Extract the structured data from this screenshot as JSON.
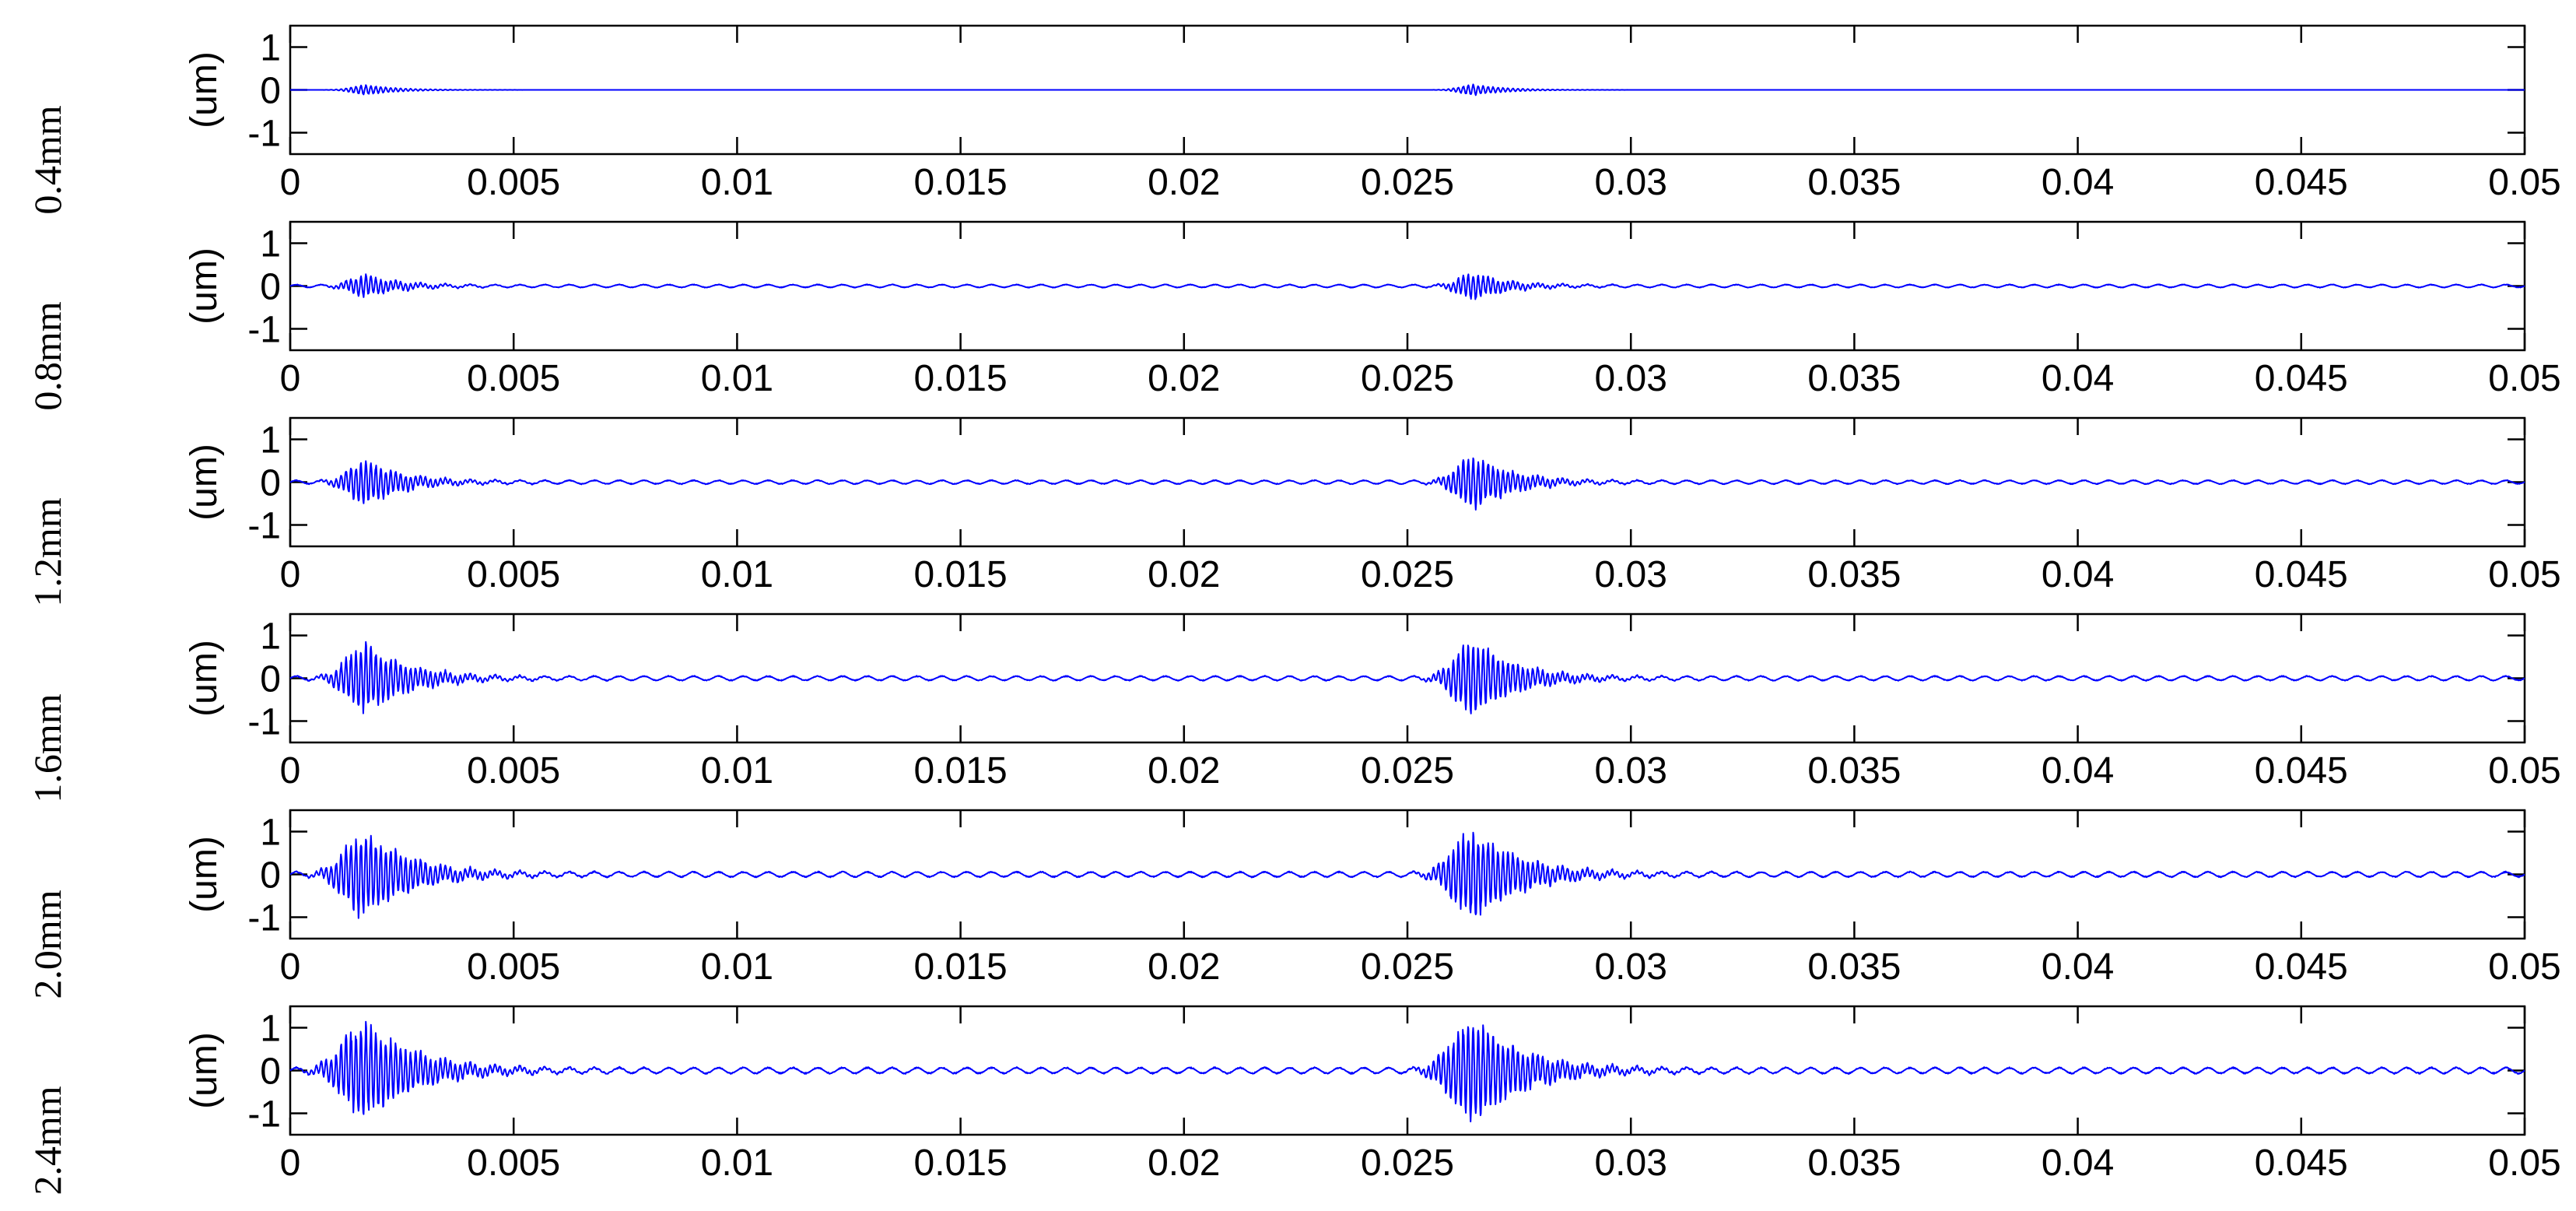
{
  "side_labels": [
    "0.4mm",
    "0.8mm",
    "1.2mm",
    "1.6mm",
    "2.0mm",
    "2.4mm"
  ],
  "colors": {
    "signal": "#0000ff",
    "axes": "#000000"
  },
  "chart_data": [
    {
      "type": "line",
      "series": [
        {
          "pulses": [
            {
              "center": 0.0017,
              "amplitude": 0.12,
              "width": 0.0008
            },
            {
              "center": 0.0265,
              "amplitude": 0.13,
              "width": 0.0008
            }
          ],
          "ripple": 0.0
        }
      ],
      "xlim": [
        0,
        0.05
      ],
      "ylim": [
        -1.5,
        1.5
      ],
      "xticks": [
        "0",
        "0.005",
        "0.01",
        "0.015",
        "0.02",
        "0.025",
        "0.03",
        "0.035",
        "0.04",
        "0.045",
        "0.05"
      ],
      "yticks": [
        "1",
        "0",
        "-1"
      ],
      "ylabel": "(um)"
    },
    {
      "type": "line",
      "series": [
        {
          "pulses": [
            {
              "center": 0.0017,
              "amplitude": 0.27,
              "width": 0.0009
            },
            {
              "center": 0.0265,
              "amplitude": 0.32,
              "width": 0.0009
            }
          ],
          "ripple": 0.04
        }
      ],
      "xlim": [
        0,
        0.05
      ],
      "ylim": [
        -1.5,
        1.5
      ],
      "xticks": [
        "0",
        "0.005",
        "0.01",
        "0.015",
        "0.02",
        "0.025",
        "0.03",
        "0.035",
        "0.04",
        "0.045",
        "0.05"
      ],
      "yticks": [
        "1",
        "0",
        "-1"
      ],
      "ylabel": "(um)"
    },
    {
      "type": "line",
      "series": [
        {
          "pulses": [
            {
              "center": 0.0017,
              "amplitude": 0.55,
              "width": 0.001
            },
            {
              "center": 0.0265,
              "amplitude": 0.65,
              "width": 0.001
            }
          ],
          "ripple": 0.05
        }
      ],
      "xlim": [
        0,
        0.05
      ],
      "ylim": [
        -1.5,
        1.5
      ],
      "xticks": [
        "0",
        "0.005",
        "0.01",
        "0.015",
        "0.02",
        "0.025",
        "0.03",
        "0.035",
        "0.04",
        "0.045",
        "0.05"
      ],
      "yticks": [
        "1",
        "0",
        "-1"
      ],
      "ylabel": "(um)"
    },
    {
      "type": "line",
      "series": [
        {
          "pulses": [
            {
              "center": 0.0017,
              "amplitude": 0.85,
              "width": 0.0011
            },
            {
              "center": 0.0265,
              "amplitude": 0.9,
              "width": 0.0011
            }
          ],
          "ripple": 0.06
        }
      ],
      "xlim": [
        0,
        0.05
      ],
      "ylim": [
        -1.5,
        1.5
      ],
      "xticks": [
        "0",
        "0.005",
        "0.01",
        "0.015",
        "0.02",
        "0.025",
        "0.03",
        "0.035",
        "0.04",
        "0.045",
        "0.05"
      ],
      "yticks": [
        "1",
        "0",
        "-1"
      ],
      "ylabel": "(um)"
    },
    {
      "type": "line",
      "series": [
        {
          "pulses": [
            {
              "center": 0.0017,
              "amplitude": 1.05,
              "width": 0.0012
            },
            {
              "center": 0.0265,
              "amplitude": 1.1,
              "width": 0.0012
            }
          ],
          "ripple": 0.07
        }
      ],
      "xlim": [
        0,
        0.05
      ],
      "ylim": [
        -1.5,
        1.5
      ],
      "xticks": [
        "0",
        "0.005",
        "0.01",
        "0.015",
        "0.02",
        "0.025",
        "0.03",
        "0.035",
        "0.04",
        "0.045",
        "0.05"
      ],
      "yticks": [
        "1",
        "0",
        "-1"
      ],
      "ylabel": "(um)"
    },
    {
      "type": "line",
      "series": [
        {
          "pulses": [
            {
              "center": 0.0017,
              "amplitude": 1.2,
              "width": 0.0013
            },
            {
              "center": 0.0265,
              "amplitude": 1.25,
              "width": 0.0013
            }
          ],
          "ripple": 0.08
        }
      ],
      "xlim": [
        0,
        0.05
      ],
      "ylim": [
        -1.5,
        1.5
      ],
      "xticks": [
        "0",
        "0.005",
        "0.01",
        "0.015",
        "0.02",
        "0.025",
        "0.03",
        "0.035",
        "0.04",
        "0.045",
        "0.05"
      ],
      "yticks": [
        "1",
        "0",
        "-1"
      ],
      "ylabel": "(um)"
    }
  ]
}
